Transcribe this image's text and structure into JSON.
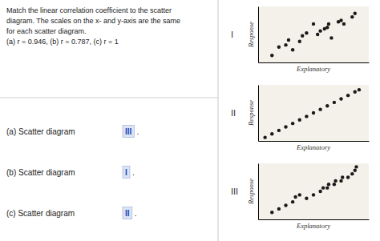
{
  "title": "Match the linear correlation coefficient to the scatter\ndiagram. The scales on the x- and y-axis are the same\nfor each scatter diagram.\n(a) r = 0.946,  (b) r = 0.787,  (c) r = 1",
  "annotations": [
    {
      "label": "(a) Scatter diagram",
      "answer": "III",
      "end": "."
    },
    {
      "label": "(b) Scatter diagram",
      "answer": "I",
      "end": "."
    },
    {
      "label": "(c) Scatter diagram",
      "answer": "II",
      "end": "."
    }
  ],
  "chart_data": [
    {
      "type": "scatter",
      "title": "I",
      "xlabel": "Explanatory",
      "ylabel": "Response",
      "x": [
        1.0,
        1.5,
        2.0,
        2.2,
        2.5,
        3.0,
        3.2,
        3.5,
        4.0,
        4.3,
        4.5,
        4.8,
        5.0,
        5.1,
        5.3,
        5.8,
        6.0,
        6.2,
        6.8,
        7.0
      ],
      "values": [
        1.0,
        2.2,
        2.5,
        3.2,
        1.8,
        3.0,
        3.8,
        4.2,
        5.5,
        4.0,
        4.5,
        4.8,
        5.0,
        5.5,
        3.5,
        5.8,
        6.0,
        5.5,
        6.5,
        7.0
      ],
      "color": "#1a1a1a",
      "xlim": [
        0,
        8
      ],
      "ylim": [
        0,
        8
      ],
      "xticks": [],
      "yticks": [],
      "tick_labels": false,
      "grid": false
    },
    {
      "type": "scatter",
      "title": "II",
      "xlabel": "Explanatory",
      "ylabel": "Response",
      "x": [
        0.5,
        1.0,
        1.5,
        2.0,
        2.5,
        3.0,
        3.5,
        4.0,
        4.5,
        5.0,
        5.5,
        6.0,
        6.5,
        7.0,
        7.3
      ],
      "values": [
        0.5,
        1.0,
        1.5,
        2.0,
        2.5,
        3.0,
        3.5,
        4.0,
        4.5,
        5.0,
        5.5,
        6.0,
        6.5,
        7.0,
        7.3
      ],
      "color": "#1a1a1a",
      "xlim": [
        0,
        8
      ],
      "ylim": [
        0,
        8
      ],
      "xticks": [],
      "yticks": [],
      "tick_labels": false,
      "grid": false
    },
    {
      "type": "scatter",
      "title": "III",
      "xlabel": "Explanatory",
      "ylabel": "Response",
      "x": [
        1.0,
        1.5,
        2.0,
        2.5,
        2.7,
        3.0,
        3.5,
        4.0,
        4.5,
        4.7,
        5.0,
        5.1,
        5.5,
        5.6,
        6.0,
        6.1,
        6.5,
        6.8,
        7.0,
        7.1
      ],
      "values": [
        1.0,
        1.5,
        2.0,
        2.5,
        3.2,
        3.5,
        3.0,
        3.5,
        4.0,
        4.5,
        4.5,
        5.0,
        5.0,
        5.5,
        5.5,
        6.0,
        6.0,
        6.5,
        7.0,
        7.5
      ],
      "color": "#1a1a1a",
      "xlim": [
        0,
        8
      ],
      "ylim": [
        0,
        8
      ],
      "xticks": [],
      "yticks": [],
      "tick_labels": false,
      "grid": false
    }
  ]
}
